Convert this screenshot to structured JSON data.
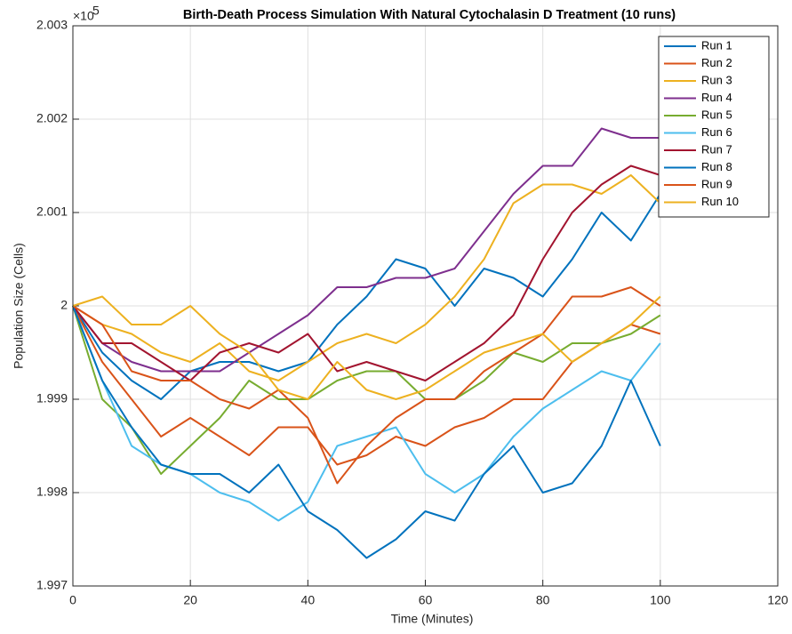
{
  "chart_data": {
    "type": "line",
    "title": "Birth-Death Process Simulation With Natural Cytochalasin D Treatment (10 runs)",
    "xlabel": "Time (Minutes)",
    "ylabel": "Population Size (Cells)",
    "y_exponent_base": "×10",
    "y_exponent": "5",
    "x": [
      0,
      5,
      10,
      15,
      20,
      25,
      30,
      35,
      40,
      45,
      50,
      55,
      60,
      65,
      70,
      75,
      80,
      85,
      90,
      95,
      100
    ],
    "series": [
      {
        "name": "Run 1",
        "color": "#0072BD",
        "values": [
          2.0,
          1.9995,
          1.9992,
          1.999,
          1.9993,
          1.9994,
          1.9994,
          1.9993,
          1.9994,
          1.9998,
          2.0001,
          2.0005,
          2.0004,
          2.0,
          2.0004,
          2.0003,
          2.0001,
          2.0005,
          2.001,
          2.0007,
          2.0012
        ]
      },
      {
        "name": "Run 2",
        "color": "#D95319",
        "values": [
          2.0,
          1.9994,
          1.999,
          1.9986,
          1.9988,
          1.9986,
          1.9984,
          1.9987,
          1.9987,
          1.9983,
          1.9984,
          1.9986,
          1.9985,
          1.9987,
          1.9988,
          1.999,
          1.999,
          1.9994,
          1.9996,
          1.9998,
          1.9997
        ]
      },
      {
        "name": "Run 3",
        "color": "#EDB120",
        "values": [
          2.0,
          1.9998,
          1.9997,
          1.9995,
          1.9994,
          1.9996,
          1.9993,
          1.9992,
          1.9994,
          1.9996,
          1.9997,
          1.9996,
          1.9998,
          2.0001,
          2.0005,
          2.0011,
          2.0013,
          2.0013,
          2.0012,
          2.0014,
          2.0011
        ]
      },
      {
        "name": "Run 4",
        "color": "#7E2F8E",
        "values": [
          2.0,
          1.9996,
          1.9994,
          1.9993,
          1.9993,
          1.9993,
          1.9995,
          1.9997,
          1.9999,
          2.0002,
          2.0002,
          2.0003,
          2.0003,
          2.0004,
          2.0008,
          2.0012,
          2.0015,
          2.0015,
          2.0019,
          2.0018,
          2.0018
        ]
      },
      {
        "name": "Run 5",
        "color": "#77AC30",
        "values": [
          2.0,
          1.999,
          1.9987,
          1.9982,
          1.9985,
          1.9988,
          1.9992,
          1.999,
          1.999,
          1.9992,
          1.9993,
          1.9993,
          1.999,
          1.999,
          1.9992,
          1.9995,
          1.9994,
          1.9996,
          1.9996,
          1.9997,
          1.9999
        ]
      },
      {
        "name": "Run 6",
        "color": "#4DBEEE",
        "values": [
          2.0,
          1.9992,
          1.9985,
          1.9983,
          1.9982,
          1.998,
          1.9979,
          1.9977,
          1.9979,
          1.9985,
          1.9986,
          1.9987,
          1.9982,
          1.998,
          1.9982,
          1.9986,
          1.9989,
          1.9991,
          1.9993,
          1.9992,
          1.9996
        ]
      },
      {
        "name": "Run 7",
        "color": "#A2142F",
        "values": [
          2.0,
          1.9996,
          1.9996,
          1.9994,
          1.9992,
          1.9995,
          1.9996,
          1.9995,
          1.9997,
          1.9993,
          1.9994,
          1.9993,
          1.9992,
          1.9994,
          1.9996,
          1.9999,
          2.0005,
          2.001,
          2.0013,
          2.0015,
          2.0014
        ]
      },
      {
        "name": "Run 8",
        "color": "#0072BD",
        "values": [
          2.0,
          1.9992,
          1.9987,
          1.9983,
          1.9982,
          1.9982,
          1.998,
          1.9983,
          1.9978,
          1.9976,
          1.9973,
          1.9975,
          1.9978,
          1.9977,
          1.9982,
          1.9985,
          1.998,
          1.9981,
          1.9985,
          1.9992,
          1.9985
        ]
      },
      {
        "name": "Run 9",
        "color": "#D95319",
        "values": [
          2.0,
          1.9998,
          1.9993,
          1.9992,
          1.9992,
          1.999,
          1.9989,
          1.9991,
          1.9988,
          1.9981,
          1.9985,
          1.9988,
          1.999,
          1.999,
          1.9993,
          1.9995,
          1.9997,
          2.0001,
          2.0001,
          2.0002,
          2.0
        ]
      },
      {
        "name": "Run 10",
        "color": "#EDB120",
        "values": [
          2.0,
          2.0001,
          1.9998,
          1.9998,
          2.0,
          1.9997,
          1.9995,
          1.9991,
          1.999,
          1.9994,
          1.9991,
          1.999,
          1.9991,
          1.9993,
          1.9995,
          1.9996,
          1.9997,
          1.9994,
          1.9996,
          1.9998,
          2.0001
        ]
      }
    ],
    "xlim": [
      0,
      120
    ],
    "xticks": [
      0,
      20,
      40,
      60,
      80,
      100,
      120
    ],
    "ylim": [
      1.997,
      2.003
    ],
    "yticks": [
      1.997,
      1.998,
      1.999,
      2,
      2.001,
      2.002,
      2.003
    ],
    "grid": true,
    "legend": "upper right"
  }
}
